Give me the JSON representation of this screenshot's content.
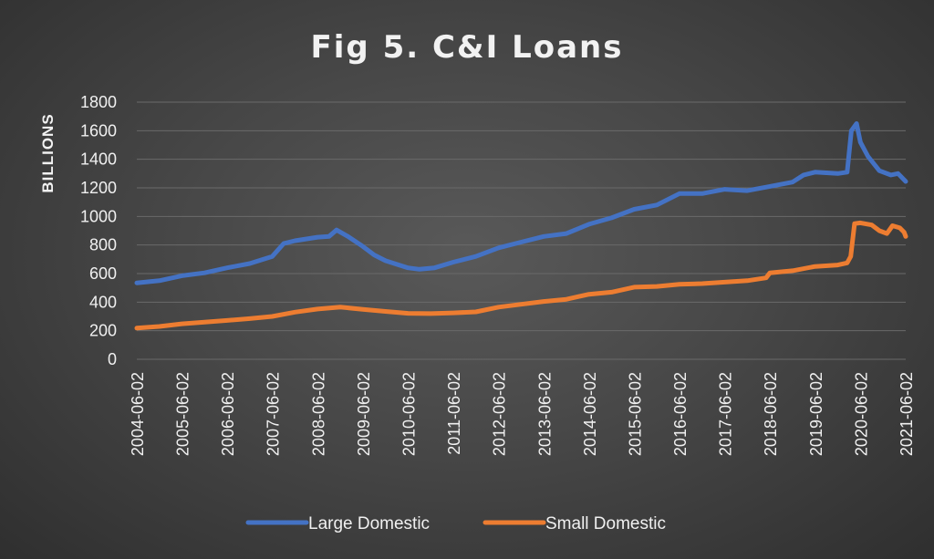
{
  "chart_data": {
    "type": "line",
    "title": "Fig 5. C&I Loans",
    "xlabel": "",
    "ylabel": "BILLIONS",
    "ylim": [
      0,
      1800
    ],
    "yticks": [
      0,
      200,
      400,
      600,
      800,
      1000,
      1200,
      1400,
      1600,
      1800
    ],
    "xticks": [
      "2004-06-02",
      "2005-06-02",
      "2006-06-02",
      "2007-06-02",
      "2008-06-02",
      "2009-06-02",
      "2010-06-02",
      "2011-06-02",
      "2012-06-02",
      "2013-06-02",
      "2014-06-02",
      "2015-06-02",
      "2016-06-02",
      "2017-06-02",
      "2018-06-02",
      "2019-06-02",
      "2020-06-02",
      "2021-06-02"
    ],
    "xrange": [
      "2004-06-02",
      "2021-06-02"
    ],
    "grid": true,
    "legend_position": "bottom",
    "series": [
      {
        "name": "Large Domestic",
        "color": "#4472C4",
        "points": [
          [
            "2004-06-02",
            535
          ],
          [
            "2004-12-01",
            550
          ],
          [
            "2005-06-01",
            585
          ],
          [
            "2005-12-01",
            605
          ],
          [
            "2006-06-01",
            640
          ],
          [
            "2006-12-01",
            670
          ],
          [
            "2007-06-01",
            720
          ],
          [
            "2007-09-01",
            810
          ],
          [
            "2007-12-01",
            830
          ],
          [
            "2008-06-01",
            855
          ],
          [
            "2008-09-01",
            860
          ],
          [
            "2008-11-01",
            905
          ],
          [
            "2009-02-01",
            860
          ],
          [
            "2009-06-01",
            790
          ],
          [
            "2009-09-01",
            730
          ],
          [
            "2009-12-01",
            690
          ],
          [
            "2010-06-01",
            640
          ],
          [
            "2010-09-01",
            630
          ],
          [
            "2011-01-01",
            640
          ],
          [
            "2011-06-01",
            680
          ],
          [
            "2011-12-01",
            720
          ],
          [
            "2012-06-01",
            780
          ],
          [
            "2012-12-01",
            820
          ],
          [
            "2013-06-01",
            860
          ],
          [
            "2013-12-01",
            880
          ],
          [
            "2014-06-01",
            945
          ],
          [
            "2014-12-01",
            990
          ],
          [
            "2015-06-01",
            1050
          ],
          [
            "2015-12-01",
            1080
          ],
          [
            "2016-06-01",
            1160
          ],
          [
            "2016-12-01",
            1160
          ],
          [
            "2017-06-01",
            1190
          ],
          [
            "2017-12-01",
            1180
          ],
          [
            "2018-06-01",
            1210
          ],
          [
            "2018-12-01",
            1240
          ],
          [
            "2019-03-01",
            1290
          ],
          [
            "2019-06-01",
            1310
          ],
          [
            "2019-12-01",
            1300
          ],
          [
            "2020-02-15",
            1310
          ],
          [
            "2020-03-20",
            1600
          ],
          [
            "2020-05-01",
            1650
          ],
          [
            "2020-06-01",
            1520
          ],
          [
            "2020-08-01",
            1420
          ],
          [
            "2020-11-01",
            1320
          ],
          [
            "2021-02-01",
            1290
          ],
          [
            "2021-04-01",
            1300
          ],
          [
            "2021-06-02",
            1245
          ]
        ]
      },
      {
        "name": "Small Domestic",
        "color": "#ED7D31",
        "points": [
          [
            "2004-06-02",
            218
          ],
          [
            "2004-12-01",
            230
          ],
          [
            "2005-06-01",
            248
          ],
          [
            "2005-12-01",
            260
          ],
          [
            "2006-06-01",
            272
          ],
          [
            "2006-12-01",
            285
          ],
          [
            "2007-06-01",
            300
          ],
          [
            "2007-12-01",
            330
          ],
          [
            "2008-06-01",
            352
          ],
          [
            "2008-12-01",
            365
          ],
          [
            "2009-06-01",
            350
          ],
          [
            "2009-12-01",
            335
          ],
          [
            "2010-06-01",
            322
          ],
          [
            "2010-12-01",
            320
          ],
          [
            "2011-06-01",
            325
          ],
          [
            "2011-12-01",
            332
          ],
          [
            "2012-06-01",
            365
          ],
          [
            "2012-12-01",
            385
          ],
          [
            "2013-06-01",
            405
          ],
          [
            "2013-12-01",
            420
          ],
          [
            "2014-06-01",
            455
          ],
          [
            "2014-12-01",
            470
          ],
          [
            "2015-06-01",
            505
          ],
          [
            "2015-12-01",
            510
          ],
          [
            "2016-06-01",
            525
          ],
          [
            "2016-12-01",
            530
          ],
          [
            "2017-06-01",
            540
          ],
          [
            "2017-12-01",
            550
          ],
          [
            "2018-05-01",
            570
          ],
          [
            "2018-06-01",
            605
          ],
          [
            "2018-12-01",
            620
          ],
          [
            "2019-06-01",
            650
          ],
          [
            "2019-12-01",
            660
          ],
          [
            "2020-02-15",
            675
          ],
          [
            "2020-03-15",
            720
          ],
          [
            "2020-04-15",
            950
          ],
          [
            "2020-06-01",
            955
          ],
          [
            "2020-09-01",
            940
          ],
          [
            "2020-11-01",
            900
          ],
          [
            "2021-01-01",
            880
          ],
          [
            "2021-02-15",
            935
          ],
          [
            "2021-04-15",
            920
          ],
          [
            "2021-05-20",
            890
          ],
          [
            "2021-06-02",
            860
          ]
        ]
      }
    ]
  }
}
